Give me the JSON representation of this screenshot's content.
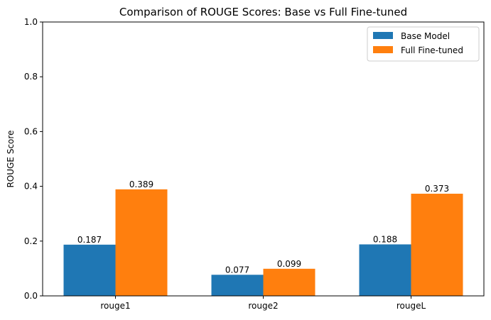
{
  "chart_data": {
    "type": "bar",
    "title": "Comparison of ROUGE Scores: Base vs Full Fine-tuned",
    "xlabel": "",
    "ylabel": "ROUGE Score",
    "categories": [
      "rouge1",
      "rouge2",
      "rougeL"
    ],
    "series": [
      {
        "name": "Base Model",
        "values": [
          0.187,
          0.077,
          0.188
        ],
        "labels": [
          "0.187",
          "0.077",
          "0.188"
        ],
        "color": "#1f77b4"
      },
      {
        "name": "Full Fine-tuned",
        "values": [
          0.389,
          0.099,
          0.373
        ],
        "labels": [
          "0.389",
          "0.099",
          "0.373"
        ],
        "color": "#ff7f0e"
      }
    ],
    "ylim": [
      0,
      1.0
    ],
    "yticks": [
      "0.0",
      "0.2",
      "0.4",
      "0.6",
      "0.8",
      "1.0"
    ],
    "grid": false,
    "legend_position": "top-right"
  }
}
